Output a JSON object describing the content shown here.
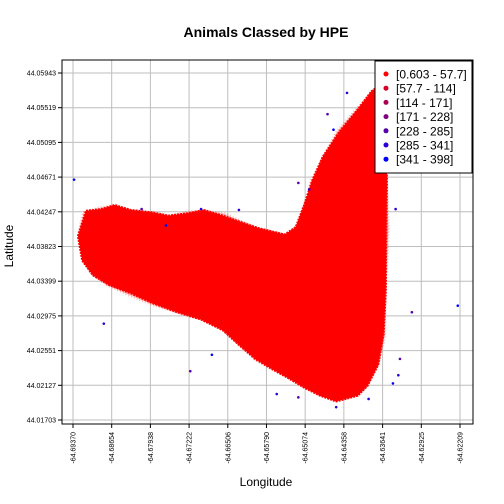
{
  "chart_data": {
    "type": "scatter",
    "title": "Animals Classed by HPE",
    "xlabel": "Longitude",
    "ylabel": "Latitude",
    "xlim": [
      -64.6937,
      -64.62209
    ],
    "ylim": [
      44.01703,
      44.05943
    ],
    "x_ticks": [
      -64.6937,
      -64.68654,
      -64.67938,
      -64.67222,
      -64.66506,
      -64.6579,
      -64.65074,
      -64.64358,
      -64.63641,
      -64.62925,
      -64.62209
    ],
    "x_tick_labels": [
      "-64.69370",
      "-64.68654",
      "-64.67938",
      "-64.67222",
      "-64.66506",
      "-64.65790",
      "-64.65074",
      "-64.64358",
      "-64.63641",
      "-64.62925",
      "-64.62209"
    ],
    "y_ticks": [
      44.05943,
      44.05519,
      44.05095,
      44.04671,
      44.04247,
      44.03823,
      44.03399,
      44.02975,
      44.02551,
      44.02127,
      44.01703
    ],
    "y_tick_labels": [
      "44.05943",
      "44.05519",
      "44.05095",
      "44.04671",
      "44.04247",
      "44.03823",
      "44.03399",
      "44.02975",
      "44.02551",
      "44.02127",
      "44.01703"
    ],
    "grid": true,
    "legend_position": "top-right",
    "series": [
      {
        "name": "[0.603 - 57.7]",
        "color": "#ff0000"
      },
      {
        "name": "[57.7 - 114]",
        "color": "#d4002b"
      },
      {
        "name": "[114 - 171]",
        "color": "#aa0055"
      },
      {
        "name": "[171 - 228]",
        "color": "#800080"
      },
      {
        "name": "[228 - 285]",
        "color": "#5500aa"
      },
      {
        "name": "[285 - 341]",
        "color": "#2b00d4"
      },
      {
        "name": "[341 - 398]",
        "color": "#0000ff"
      }
    ],
    "dense_region_polygon": [
      [
        -64.6913,
        44.0426
      ],
      [
        -64.6885,
        44.0428
      ],
      [
        -64.686,
        44.0433
      ],
      [
        -64.683,
        44.0427
      ],
      [
        -64.679,
        44.0424
      ],
      [
        -64.676,
        44.042
      ],
      [
        -64.6725,
        44.0423
      ],
      [
        -64.6695,
        44.0427
      ],
      [
        -64.666,
        44.042
      ],
      [
        -64.6625,
        44.0412
      ],
      [
        -64.6595,
        44.0405
      ],
      [
        -64.657,
        44.0401
      ],
      [
        -64.6545,
        44.0397
      ],
      [
        -64.6525,
        44.0406
      ],
      [
        -64.651,
        44.0432
      ],
      [
        -64.6495,
        44.0462
      ],
      [
        -64.6475,
        44.0492
      ],
      [
        -64.6445,
        44.0522
      ],
      [
        -64.641,
        44.055
      ],
      [
        -64.6385,
        44.0572
      ],
      [
        -64.6368,
        44.058
      ],
      [
        -64.636,
        44.056
      ],
      [
        -64.6357,
        44.052
      ],
      [
        -64.6356,
        44.046
      ],
      [
        -64.6357,
        44.04
      ],
      [
        -64.6358,
        44.033
      ],
      [
        -64.6362,
        44.0275
      ],
      [
        -64.6372,
        44.0238
      ],
      [
        -64.6392,
        44.0212
      ],
      [
        -64.641,
        44.02
      ],
      [
        -64.645,
        44.0193
      ],
      [
        -64.648,
        44.02
      ],
      [
        -64.651,
        44.021
      ],
      [
        -64.654,
        44.0222
      ],
      [
        -64.657,
        44.0233
      ],
      [
        -64.66,
        44.0245
      ],
      [
        -64.663,
        44.0262
      ],
      [
        -64.666,
        44.028
      ],
      [
        -64.67,
        44.0293
      ],
      [
        -64.6745,
        44.0302
      ],
      [
        -64.679,
        44.0313
      ],
      [
        -64.683,
        44.0325
      ],
      [
        -64.687,
        44.0335
      ],
      [
        -64.69,
        44.0347
      ],
      [
        -64.692,
        44.0365
      ],
      [
        -64.6928,
        44.0395
      ]
    ],
    "outlier_points": [
      {
        "x": -64.6935,
        "y": 44.0464,
        "class": 6
      },
      {
        "x": -64.6466,
        "y": 44.0544,
        "class": 4
      },
      {
        "x": -64.643,
        "y": 44.057,
        "class": 5
      },
      {
        "x": -64.652,
        "y": 44.046,
        "class": 4
      },
      {
        "x": -64.65,
        "y": 44.0452,
        "class": 5
      },
      {
        "x": -64.6455,
        "y": 44.0525,
        "class": 6
      },
      {
        "x": -64.67,
        "y": 44.0428,
        "class": 5
      },
      {
        "x": -64.681,
        "y": 44.0428,
        "class": 4
      },
      {
        "x": -64.663,
        "y": 44.0427,
        "class": 5
      },
      {
        "x": -64.688,
        "y": 44.0288,
        "class": 5
      },
      {
        "x": -64.672,
        "y": 44.023,
        "class": 4
      },
      {
        "x": -64.668,
        "y": 44.025,
        "class": 6
      },
      {
        "x": -64.656,
        "y": 44.0202,
        "class": 5
      },
      {
        "x": -64.652,
        "y": 44.0198,
        "class": 4
      },
      {
        "x": -64.639,
        "y": 44.0196,
        "class": 5
      },
      {
        "x": -64.6345,
        "y": 44.0215,
        "class": 6
      },
      {
        "x": -64.6335,
        "y": 44.0225,
        "class": 5
      },
      {
        "x": -64.631,
        "y": 44.0302,
        "class": 4
      },
      {
        "x": -64.6225,
        "y": 44.031,
        "class": 6
      },
      {
        "x": -64.634,
        "y": 44.0428,
        "class": 5
      },
      {
        "x": -64.6332,
        "y": 44.0245,
        "class": 4
      },
      {
        "x": -64.6765,
        "y": 44.0408,
        "class": 6
      },
      {
        "x": -64.645,
        "y": 44.0186,
        "class": 5
      }
    ]
  }
}
